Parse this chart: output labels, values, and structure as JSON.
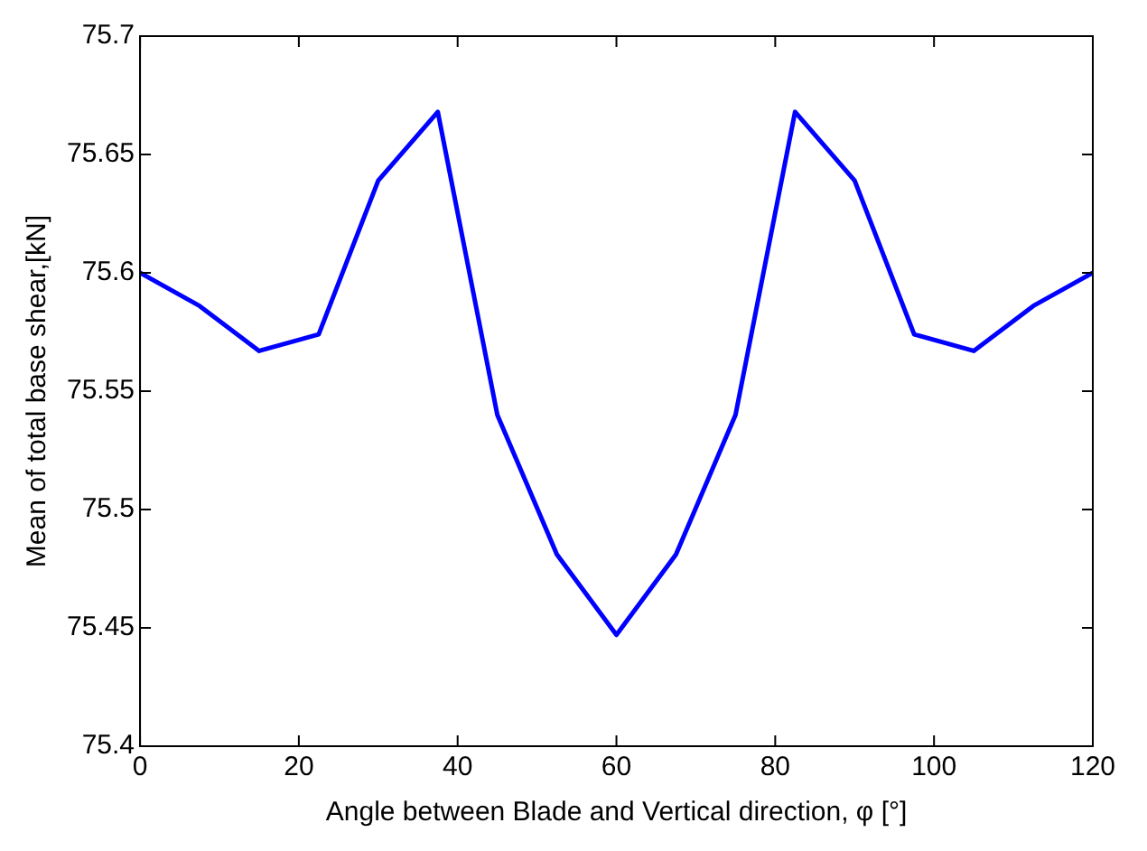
{
  "chart_data": {
    "type": "line",
    "xlabel": "Angle between Blade and Vertical direction, φ [°]",
    "ylabel": "Mean of total base shear,[kN]",
    "x": [
      0,
      7.5,
      15,
      22.5,
      30,
      37.5,
      45,
      52.5,
      60,
      67.5,
      75,
      82.5,
      90,
      97.5,
      105,
      112.5,
      120
    ],
    "series": [
      {
        "color": "#0000ff",
        "values": [
          75.6,
          75.586,
          75.567,
          75.574,
          75.639,
          75.668,
          75.54,
          75.481,
          75.447,
          75.481,
          75.54,
          75.668,
          75.639,
          75.574,
          75.567,
          75.586,
          75.6
        ]
      }
    ],
    "xlim": [
      0,
      120
    ],
    "xticks": [
      0,
      20,
      40,
      60,
      80,
      100,
      120
    ],
    "ylim": [
      75.4,
      75.7
    ],
    "yticks": [
      75.4,
      75.45,
      75.5,
      75.55,
      75.6,
      75.65,
      75.7
    ],
    "grid": false,
    "legend": false,
    "marker": "none",
    "line_style": "solid"
  }
}
